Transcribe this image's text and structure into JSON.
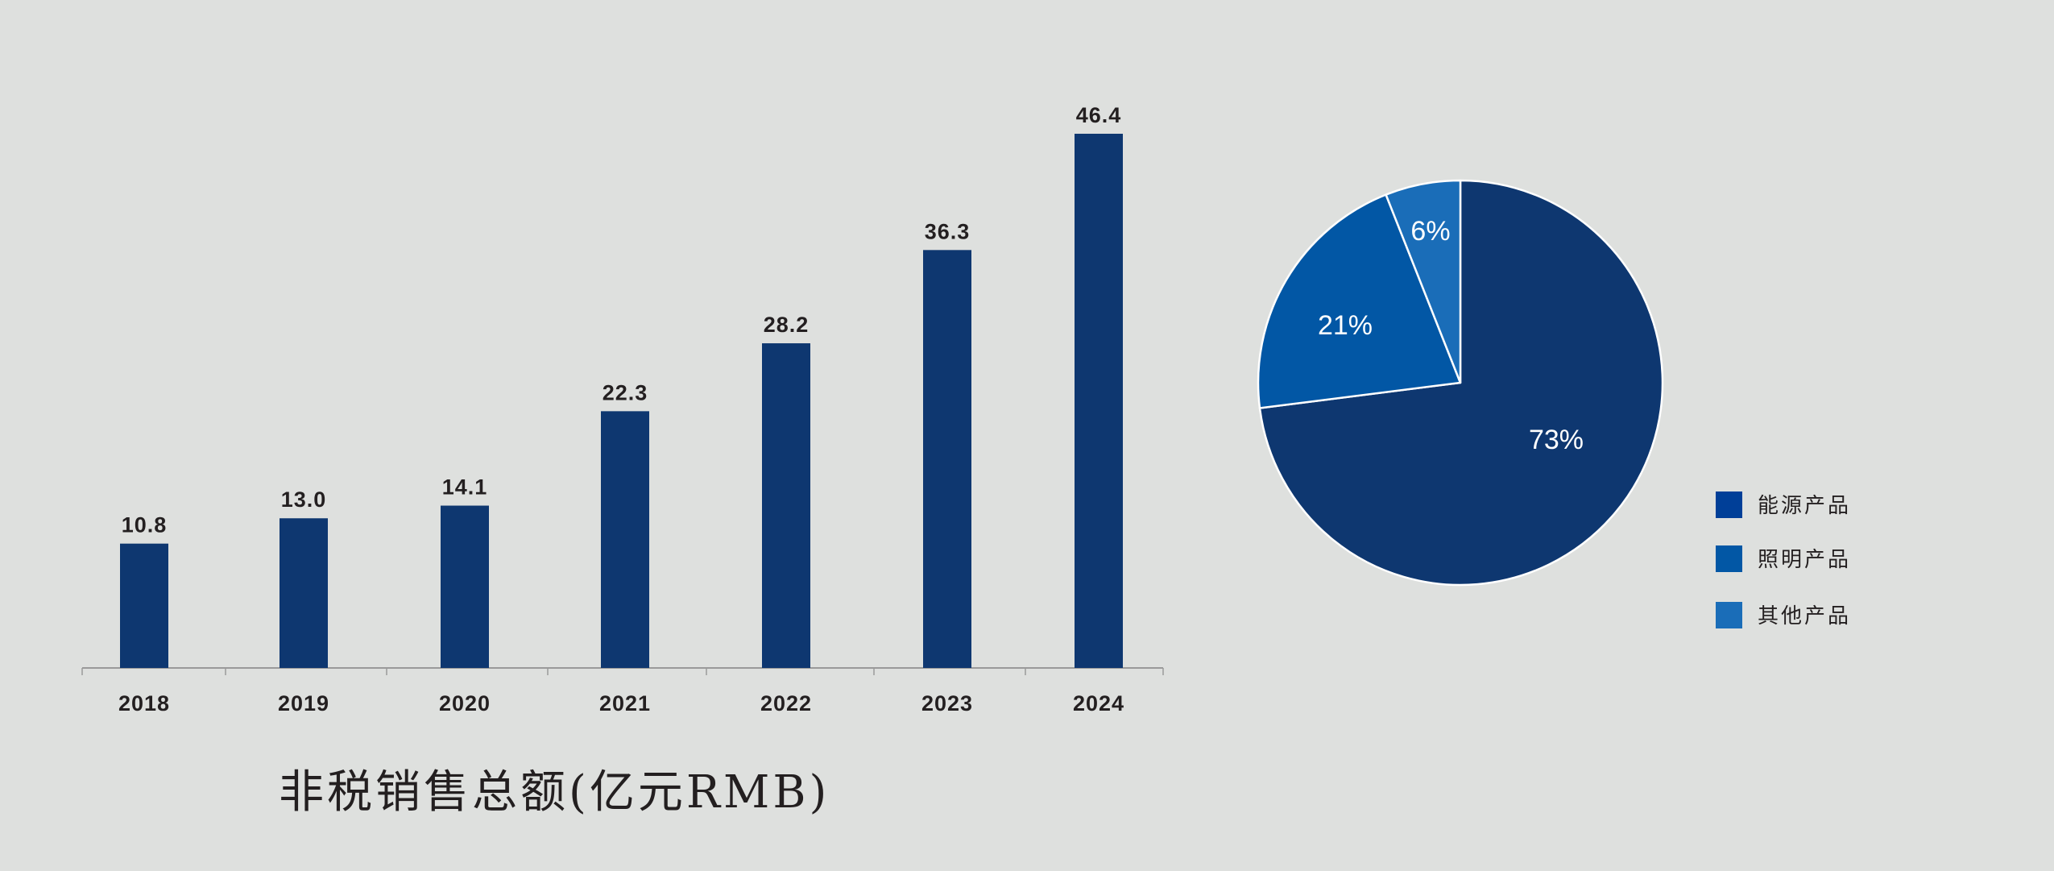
{
  "chart_data": [
    {
      "type": "bar",
      "title": "非税销售总额(亿元RMB)",
      "categories": [
        "2018",
        "2019",
        "2020",
        "2021",
        "2022",
        "2023",
        "2024"
      ],
      "values": [
        10.8,
        13.0,
        14.1,
        22.3,
        28.2,
        36.3,
        46.4
      ],
      "value_labels": [
        "10.8",
        "13.0",
        "14.1",
        "22.3",
        "28.2",
        "36.3",
        "46.4"
      ],
      "xlabel": "",
      "ylabel": "",
      "ylim": [
        0,
        46.4
      ],
      "grid": false,
      "color": "#0e3770"
    },
    {
      "type": "pie",
      "slices": [
        {
          "label": "能源产品",
          "value": 73,
          "text": "73%",
          "color": "#0e3770",
          "legend_color": "#003f98"
        },
        {
          "label": "照明产品",
          "value": 21,
          "text": "21%",
          "color": "#0257a5",
          "legend_color": "#0257a5"
        },
        {
          "label": "其他产品",
          "value": 6,
          "text": "6%",
          "color": "#1a6db8",
          "legend_color": "#1a6db8"
        }
      ],
      "legend": "right-bottom"
    }
  ],
  "background": "#dee0de"
}
